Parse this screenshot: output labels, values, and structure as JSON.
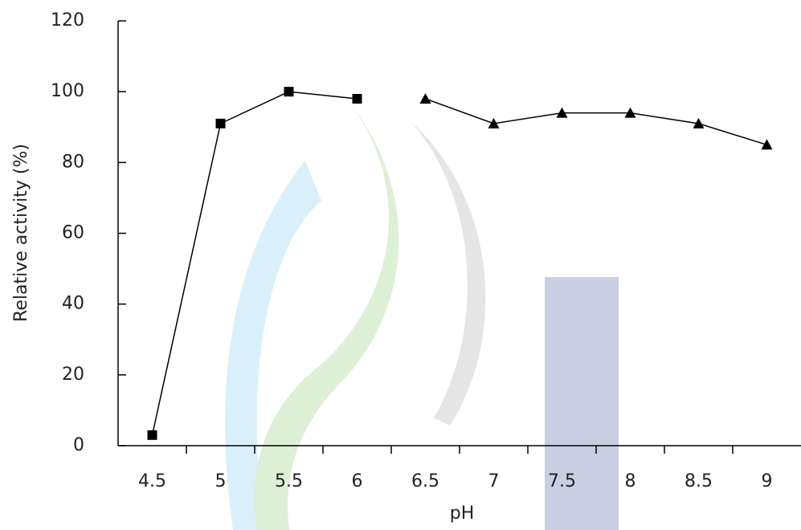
{
  "chart_data": {
    "type": "line",
    "x_label": "pH",
    "y_label": "Relative activity  (%)",
    "categories": [
      "4.5",
      "5",
      "5.5",
      "6",
      "6.5",
      "7",
      "7.5",
      "8",
      "8.5",
      "9"
    ],
    "series": [
      {
        "marker": "square",
        "color": "#000000",
        "values": [
          3,
          91,
          100,
          98,
          null,
          null,
          null,
          null,
          null,
          null
        ]
      },
      {
        "marker": "triangle",
        "color": "#000000",
        "values": [
          null,
          null,
          null,
          null,
          98,
          91,
          94,
          94,
          91,
          85
        ]
      }
    ],
    "ylim": [
      0,
      120
    ],
    "yticks": [
      0,
      20,
      40,
      60,
      80,
      100,
      120
    ],
    "grid": false
  }
}
